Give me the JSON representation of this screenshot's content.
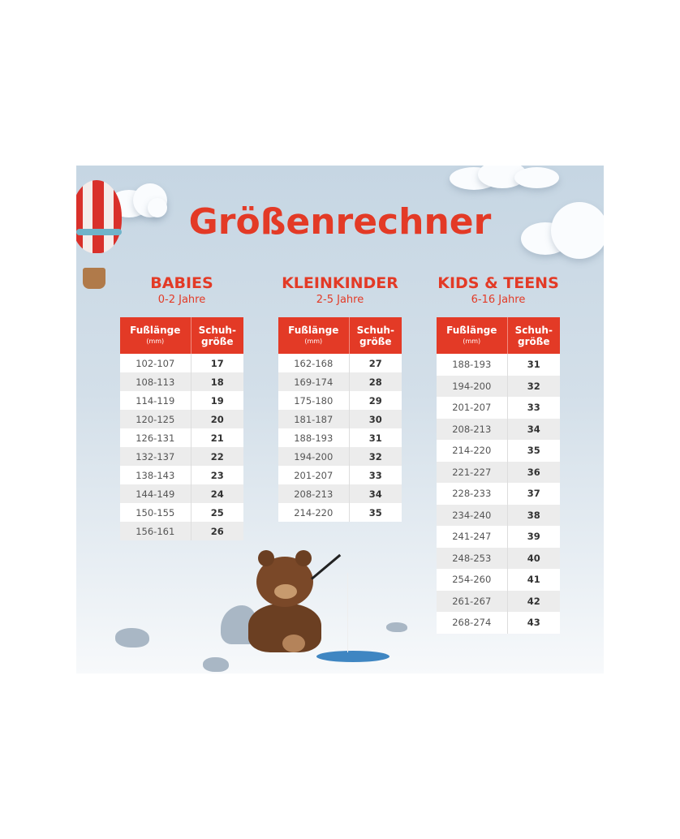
{
  "title": "Größenrechner",
  "header": {
    "foot_length": "Fußlänge",
    "foot_unit": "(mm)",
    "shoe_size_1": "Schuh-",
    "shoe_size_2": "größe"
  },
  "colors": {
    "accent": "#e33a26",
    "background": "#c6d6e3"
  },
  "groups": [
    {
      "name": "BABIES",
      "age": "0-2 Jahre",
      "rows": [
        [
          "102-107",
          "17"
        ],
        [
          "108-113",
          "18"
        ],
        [
          "114-119",
          "19"
        ],
        [
          "120-125",
          "20"
        ],
        [
          "126-131",
          "21"
        ],
        [
          "132-137",
          "22"
        ],
        [
          "138-143",
          "23"
        ],
        [
          "144-149",
          "24"
        ],
        [
          "150-155",
          "25"
        ],
        [
          "156-161",
          "26"
        ]
      ]
    },
    {
      "name": "KLEINKINDER",
      "age": "2-5 Jahre",
      "rows": [
        [
          "162-168",
          "27"
        ],
        [
          "169-174",
          "28"
        ],
        [
          "175-180",
          "29"
        ],
        [
          "181-187",
          "30"
        ],
        [
          "188-193",
          "31"
        ],
        [
          "194-200",
          "32"
        ],
        [
          "201-207",
          "33"
        ],
        [
          "208-213",
          "34"
        ],
        [
          "214-220",
          "35"
        ]
      ]
    },
    {
      "name": "KIDS & TEENS",
      "age": "6-16 Jahre",
      "rows": [
        [
          "188-193",
          "31"
        ],
        [
          "194-200",
          "32"
        ],
        [
          "201-207",
          "33"
        ],
        [
          "208-213",
          "34"
        ],
        [
          "214-220",
          "35"
        ],
        [
          "221-227",
          "36"
        ],
        [
          "228-233",
          "37"
        ],
        [
          "234-240",
          "38"
        ],
        [
          "241-247",
          "39"
        ],
        [
          "248-253",
          "40"
        ],
        [
          "254-260",
          "41"
        ],
        [
          "261-267",
          "42"
        ],
        [
          "268-274",
          "43"
        ]
      ]
    }
  ],
  "decorations": [
    "hot-air-balloon",
    "clouds",
    "teddy-bear-fishing",
    "rocks",
    "ice-hole"
  ]
}
